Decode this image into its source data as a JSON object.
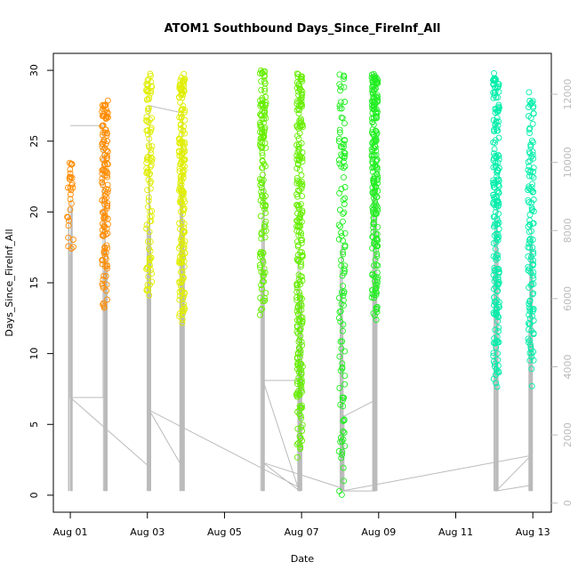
{
  "chart_data": {
    "type": "scatter",
    "title": "ATOM1 Southbound Days_Since_FireInf_All",
    "xlabel": "Date",
    "ylabel": "Days_Since_FireInf_All",
    "x_ticks": [
      "Aug 01",
      "Aug 03",
      "Aug 05",
      "Aug 07",
      "Aug 09",
      "Aug 11",
      "Aug 13"
    ],
    "x_tick_days": [
      1,
      3,
      5,
      7,
      9,
      11,
      13
    ],
    "xlim_days": [
      0.56,
      13.48
    ],
    "ylim": [
      -1.2,
      31.2
    ],
    "y_ticks": [
      0,
      5,
      10,
      15,
      20,
      25,
      30
    ],
    "y2_ticks": [
      0,
      2000,
      4000,
      6000,
      8000,
      10000,
      12000
    ],
    "y2lim": [
      -267,
      13200
    ],
    "clusters": [
      {
        "name": "",
        "day": 1.0,
        "color": "#ff8c00",
        "ymin": 17.0,
        "ymax": 23.5,
        "count": 30
      },
      {
        "name": "",
        "day": 1.9,
        "color": "#ff8c00",
        "ymin": 13.0,
        "ymax": 28.0,
        "count": 140
      },
      {
        "name": "",
        "day": 3.05,
        "color": "#e0ee00",
        "ymin": 14.0,
        "ymax": 30.0,
        "count": 100
      },
      {
        "name": "",
        "day": 3.9,
        "color": "#e0ee00",
        "ymin": 12.0,
        "ymax": 29.8,
        "count": 200
      },
      {
        "name": "",
        "day": 6.0,
        "color": "#66ee00",
        "ymin": 12.5,
        "ymax": 30.0,
        "count": 140
      },
      {
        "name": "",
        "day": 6.95,
        "color": "#66ee00",
        "ymin": 2.5,
        "ymax": 30.0,
        "count": 260
      },
      {
        "name": "",
        "day": 8.05,
        "color": "#22ee22",
        "ymin": 0.0,
        "ymax": 30.0,
        "count": 120
      },
      {
        "name": "",
        "day": 8.9,
        "color": "#22ee22",
        "ymin": 12.0,
        "ymax": 29.8,
        "count": 220
      },
      {
        "name": "",
        "day": 12.05,
        "color": "#00eeaa",
        "ymin": 7.5,
        "ymax": 29.8,
        "count": 220
      },
      {
        "name": "",
        "day": 12.95,
        "color": "#00eeaa",
        "ymin": 7.5,
        "ymax": 28.5,
        "count": 130
      }
    ],
    "grid": false,
    "legend": "none"
  }
}
